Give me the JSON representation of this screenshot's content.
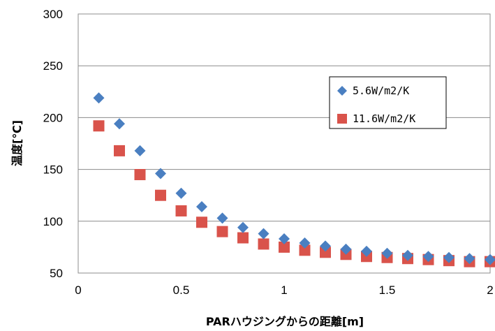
{
  "chart_data": {
    "type": "scatter",
    "title": "",
    "xlabel": "PARハウジングからの距離[m]",
    "ylabel": "温度[℃]",
    "xlim": [
      0,
      2
    ],
    "ylim": [
      50,
      300
    ],
    "xticks": [
      "0",
      "0.5",
      "1",
      "1.5",
      "2"
    ],
    "yticks": [
      "50",
      "100",
      "150",
      "200",
      "250",
      "300"
    ],
    "grid": "horizontal",
    "legend_position": "right",
    "x": [
      0.1,
      0.2,
      0.3,
      0.4,
      0.5,
      0.6,
      0.7,
      0.8,
      0.9,
      1.0,
      1.1,
      1.2,
      1.3,
      1.4,
      1.5,
      1.6,
      1.7,
      1.8,
      1.9,
      2.0
    ],
    "series": [
      {
        "name": "5.6W/m2/K",
        "marker": "diamond",
        "color": "#4a7fc1",
        "values": [
          219,
          194,
          168,
          146,
          127,
          114,
          103,
          94,
          88,
          83,
          79,
          76,
          73,
          71,
          69,
          67,
          66,
          65,
          64,
          63
        ]
      },
      {
        "name": "11.6W/m2/K",
        "marker": "square",
        "color": "#d9534b",
        "values": [
          192,
          168,
          145,
          125,
          110,
          99,
          90,
          84,
          78,
          75,
          72,
          70,
          68,
          66,
          65,
          64,
          63,
          62,
          61,
          61
        ]
      }
    ]
  }
}
